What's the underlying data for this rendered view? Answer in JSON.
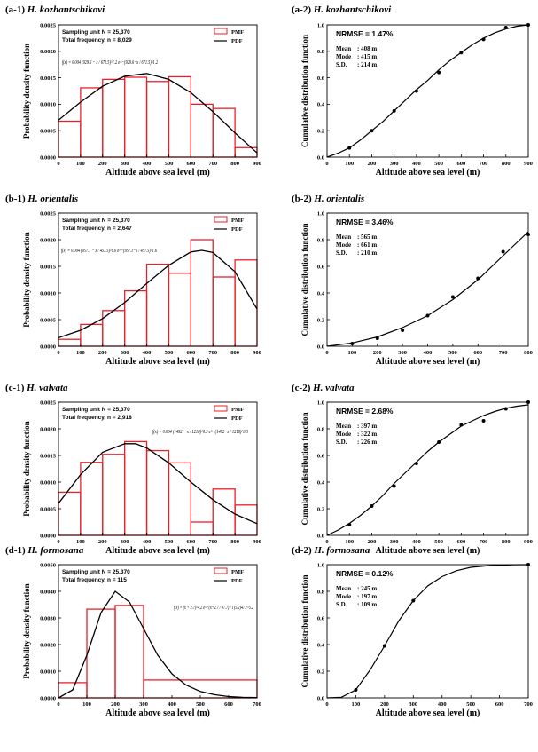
{
  "chart_data": [
    {
      "type": "bar",
      "panel": "(a-1)",
      "species": "H. kozhantschikovi",
      "info_lines": [
        "Sampling unit    N = 25,370",
        "Total frequency,  n = 8,029"
      ],
      "formula": "f(x) = 0.004 (929.6 − x / 671.5)^1.2 e^−(929.6−x / 671.5)^1.2",
      "legend": [
        "PMF",
        "PDF"
      ],
      "xlabel": "Altitude above sea level (m)",
      "ylabel": "Probability density function",
      "xlim": [
        0,
        900
      ],
      "ylim": [
        0,
        0.0025
      ],
      "xticks": [
        0,
        100,
        200,
        300,
        400,
        500,
        600,
        700,
        800,
        900
      ],
      "yticks": [
        0,
        0.0005,
        0.001,
        0.0015,
        0.002,
        0.0025
      ],
      "ytick_labels": [
        "0.0000",
        "0.0005",
        "0.0010",
        "0.0015",
        "0.0020",
        "0.0025"
      ],
      "bins": [
        [
          0,
          100
        ],
        [
          100,
          200
        ],
        [
          200,
          300
        ],
        [
          300,
          400
        ],
        [
          400,
          500
        ],
        [
          500,
          600
        ],
        [
          600,
          700
        ],
        [
          700,
          800
        ],
        [
          800,
          900
        ]
      ],
      "values": [
        0.00068,
        0.00131,
        0.00147,
        0.00151,
        0.00143,
        0.00152,
        0.001,
        0.00092,
        0.00018
      ],
      "pdf": {
        "x": [
          0,
          100,
          200,
          300,
          400,
          500,
          600,
          700,
          800,
          900
        ],
        "y": [
          0.0007,
          0.00104,
          0.00134,
          0.00153,
          0.00158,
          0.00147,
          0.00122,
          0.00086,
          0.00046,
          8e-05
        ]
      }
    },
    {
      "type": "line",
      "panel": "(a-2)",
      "species": "H. kozhantschikovi",
      "nrmse": "NRMSE = 1.47%",
      "stats": [
        [
          "Mean",
          ": 408 m"
        ],
        [
          "Mode",
          ": 415 m"
        ],
        [
          "S.D.",
          ": 214 m"
        ]
      ],
      "xlabel": "Altitude above sea level (m)",
      "ylabel": "Cumulative distribution function",
      "xlim": [
        0,
        900
      ],
      "ylim": [
        0,
        1
      ],
      "xticks": [
        0,
        100,
        200,
        300,
        400,
        500,
        600,
        700,
        800,
        900
      ],
      "yticks": [
        0,
        0.2,
        0.4,
        0.6,
        0.8,
        1
      ],
      "ytick_labels": [
        "0.0",
        "0.2",
        "0.4",
        "0.6",
        "0.8",
        "1.0"
      ],
      "points": {
        "x": [
          100,
          200,
          300,
          400,
          500,
          600,
          700,
          800,
          900
        ],
        "y": [
          0.07,
          0.2,
          0.35,
          0.5,
          0.64,
          0.79,
          0.89,
          0.98,
          1.0
        ]
      },
      "curve": {
        "x": [
          0,
          50,
          100,
          150,
          200,
          250,
          300,
          350,
          400,
          450,
          500,
          550,
          600,
          650,
          700,
          750,
          800,
          850,
          900
        ],
        "y": [
          0,
          0.03,
          0.07,
          0.13,
          0.2,
          0.27,
          0.35,
          0.43,
          0.51,
          0.58,
          0.66,
          0.73,
          0.79,
          0.85,
          0.9,
          0.94,
          0.97,
          0.99,
          1.0
        ]
      }
    },
    {
      "type": "bar",
      "panel": "(b-1)",
      "species": "H. orientalis",
      "info_lines": [
        "Sampling unit    N = 25,370",
        "Total frequency,  n = 2,647"
      ],
      "formula": "f(x) = 0.004 (957.1 − x / 457.5)^0.6 e^−(957.1−x / 457.5)^1.6",
      "legend": [
        "PMF",
        "PDF"
      ],
      "xlabel": "Altitude above sea level (m)",
      "ylabel": "Probability density function",
      "xlim": [
        0,
        900
      ],
      "ylim": [
        0,
        0.0025
      ],
      "xticks": [
        0,
        100,
        200,
        300,
        400,
        500,
        600,
        700,
        800,
        900
      ],
      "yticks": [
        0,
        0.0005,
        0.001,
        0.0015,
        0.002,
        0.0025
      ],
      "ytick_labels": [
        "0.0000",
        "0.0005",
        "0.0010",
        "0.0015",
        "0.0020",
        "0.0025"
      ],
      "bins": [
        [
          0,
          100
        ],
        [
          100,
          200
        ],
        [
          200,
          300
        ],
        [
          300,
          400
        ],
        [
          400,
          500
        ],
        [
          500,
          600
        ],
        [
          600,
          700
        ],
        [
          700,
          800
        ],
        [
          800,
          900
        ]
      ],
      "values": [
        0.00013,
        0.00041,
        0.00067,
        0.00104,
        0.00154,
        0.00137,
        0.002,
        0.0013,
        0.00162
      ],
      "pdf": {
        "x": [
          0,
          100,
          200,
          300,
          400,
          500,
          600,
          650,
          700,
          800,
          900
        ],
        "y": [
          0.00016,
          0.0003,
          0.00052,
          0.00082,
          0.00118,
          0.00152,
          0.00177,
          0.0018,
          0.00176,
          0.0014,
          0.0007
        ]
      }
    },
    {
      "type": "line",
      "panel": "(b-2)",
      "species": "H. orientalis",
      "nrmse": "NRMSE = 3.46%",
      "stats": [
        [
          "Mean",
          ": 565 m"
        ],
        [
          "Mode",
          ": 661 m"
        ],
        [
          "S.D.",
          ": 210 m"
        ]
      ],
      "xlabel": "Altitude above sea level (m)",
      "ylabel": "Cumulative distribution function",
      "xlim": [
        0,
        800
      ],
      "ylim": [
        0,
        1
      ],
      "xticks": [
        0,
        100,
        200,
        300,
        400,
        500,
        600,
        700,
        800
      ],
      "yticks": [
        0,
        0.2,
        0.4,
        0.6,
        0.8,
        1
      ],
      "ytick_labels": [
        "0.0",
        "0.2",
        "0.4",
        "0.6",
        "0.8",
        "1.0"
      ],
      "points": {
        "x": [
          100,
          200,
          300,
          400,
          500,
          600,
          700,
          800
        ],
        "y": [
          0.02,
          0.06,
          0.12,
          0.23,
          0.37,
          0.51,
          0.71,
          0.84
        ]
      },
      "curve": {
        "x": [
          0,
          100,
          200,
          300,
          400,
          500,
          600,
          700,
          800
        ],
        "y": [
          0,
          0.025,
          0.07,
          0.14,
          0.23,
          0.35,
          0.5,
          0.68,
          0.86
        ]
      }
    },
    {
      "type": "bar",
      "panel": "(c-1)",
      "species": "H. valvata",
      "info_lines": [
        "Sampling unit    N = 25,370",
        "Total frequency,  n = 2,918"
      ],
      "formula": "f(x) = 0.004 (1492 − x / 1218)^0.3 e^−(1492−x / 1218)^3.3",
      "legend": [
        "PMF",
        "PDF"
      ],
      "xlabel": "Altitude above sea level (m)",
      "ylabel": "Probability density function",
      "xlim": [
        0,
        900
      ],
      "ylim": [
        0,
        0.0025
      ],
      "xticks": [
        0,
        100,
        200,
        300,
        400,
        500,
        600,
        700,
        800,
        900
      ],
      "yticks": [
        0,
        0.0005,
        0.001,
        0.0015,
        0.002,
        0.0025
      ],
      "ytick_labels": [
        "0.0000",
        "0.0005",
        "0.0010",
        "0.0015",
        "0.0020",
        "0.0025"
      ],
      "bins": [
        [
          0,
          100
        ],
        [
          100,
          200
        ],
        [
          200,
          300
        ],
        [
          300,
          400
        ],
        [
          400,
          500
        ],
        [
          500,
          600
        ],
        [
          600,
          700
        ],
        [
          700,
          800
        ],
        [
          800,
          900
        ]
      ],
      "values": [
        0.00081,
        0.00137,
        0.00152,
        0.00176,
        0.00159,
        0.00136,
        0.00025,
        0.00087,
        0.00057
      ],
      "pdf": {
        "x": [
          0,
          100,
          200,
          300,
          350,
          400,
          500,
          600,
          700,
          800,
          900
        ],
        "y": [
          0.0006,
          0.00114,
          0.00156,
          0.00172,
          0.00172,
          0.00164,
          0.00136,
          0.001,
          0.00067,
          0.0004,
          0.00022
        ]
      }
    },
    {
      "type": "line",
      "panel": "(c-2)",
      "species": "H. valvata",
      "nrmse": "NRMSE = 2.68%",
      "stats": [
        [
          "Mean",
          ": 397 m"
        ],
        [
          "Mode",
          ": 322 m"
        ],
        [
          "S.D.",
          ": 226 m"
        ]
      ],
      "xlabel": "Altitude above sea level (m)",
      "ylabel": "Cumulative distribution function",
      "xlim": [
        0,
        900
      ],
      "ylim": [
        0,
        1
      ],
      "xticks": [
        0,
        100,
        200,
        300,
        400,
        500,
        600,
        700,
        800,
        900
      ],
      "yticks": [
        0,
        0.2,
        0.4,
        0.6,
        0.8,
        1
      ],
      "ytick_labels": [
        "0.0",
        "0.2",
        "0.4",
        "0.6",
        "0.8",
        "1.0"
      ],
      "points": {
        "x": [
          100,
          200,
          300,
          400,
          500,
          600,
          700,
          800,
          900
        ],
        "y": [
          0.08,
          0.22,
          0.37,
          0.54,
          0.7,
          0.83,
          0.86,
          0.95,
          1.0
        ]
      },
      "curve": {
        "x": [
          0,
          50,
          100,
          150,
          200,
          250,
          300,
          350,
          400,
          450,
          500,
          550,
          600,
          650,
          700,
          750,
          800,
          850,
          900
        ],
        "y": [
          0,
          0.04,
          0.09,
          0.15,
          0.22,
          0.3,
          0.39,
          0.47,
          0.55,
          0.63,
          0.7,
          0.76,
          0.82,
          0.86,
          0.9,
          0.93,
          0.955,
          0.97,
          0.98
        ]
      }
    },
    {
      "type": "bar",
      "panel": "(d-1)",
      "species": "H. formosana",
      "info_lines": [
        "Sampling unit    N = 25,370",
        "Total frequency,  n = 115"
      ],
      "formula": "f(x) = (x + 2.7)^4.2 e^−(x+2.7 / 47.7) / Γ(5.2)47.7^5.2",
      "legend": [
        "PMF",
        "PDF"
      ],
      "xlabel": "Altitude above sea level (m)",
      "ylabel": "Probability density function",
      "xlim": [
        0,
        700
      ],
      "ylim": [
        0,
        0.005
      ],
      "xticks": [
        0,
        100,
        200,
        300,
        400,
        500,
        600,
        700
      ],
      "yticks": [
        0,
        0.001,
        0.002,
        0.003,
        0.004,
        0.005
      ],
      "ytick_labels": [
        "0.0000",
        "0.0010",
        "0.0020",
        "0.0030",
        "0.0040",
        "0.0050"
      ],
      "bins": [
        [
          0,
          100
        ],
        [
          100,
          200
        ],
        [
          200,
          300
        ],
        [
          300,
          700
        ]
      ],
      "values": [
        0.00057,
        0.00333,
        0.00347,
        0.00067
      ],
      "pdf": {
        "x": [
          0,
          50,
          100,
          150,
          200,
          250,
          300,
          350,
          400,
          450,
          500,
          550,
          600,
          650,
          700
        ],
        "y": [
          0,
          0.0003,
          0.0016,
          0.0032,
          0.004,
          0.0036,
          0.0026,
          0.0016,
          0.0009,
          0.00048,
          0.00024,
          0.00012,
          5e-05,
          2e-05,
          1e-05
        ]
      }
    },
    {
      "type": "line",
      "panel": "(d-2)",
      "species": "H. formosana",
      "nrmse": "NRMSE = 0.12%",
      "stats": [
        [
          "Mean",
          ": 245 m"
        ],
        [
          "Mode",
          ": 197 m"
        ],
        [
          "S.D.",
          ": 109 m"
        ]
      ],
      "xlabel": "Altitude above sea level (m)",
      "ylabel": "Cumulative distribution function",
      "xlim": [
        0,
        700
      ],
      "ylim": [
        0,
        1
      ],
      "xticks": [
        0,
        100,
        200,
        300,
        400,
        500,
        600,
        700
      ],
      "yticks": [
        0,
        0.2,
        0.4,
        0.6,
        0.8,
        1
      ],
      "ytick_labels": [
        "0.0",
        "0.2",
        "0.4",
        "0.6",
        "0.8",
        "1.0"
      ],
      "points": {
        "x": [
          100,
          200,
          300,
          700
        ],
        "y": [
          0.06,
          0.39,
          0.73,
          1.0
        ]
      },
      "curve": {
        "x": [
          0,
          50,
          100,
          150,
          200,
          250,
          300,
          350,
          400,
          450,
          500,
          550,
          600,
          650,
          700
        ],
        "y": [
          0,
          0.005,
          0.06,
          0.21,
          0.39,
          0.58,
          0.73,
          0.84,
          0.91,
          0.955,
          0.98,
          0.99,
          0.996,
          0.999,
          1.0
        ]
      }
    }
  ]
}
